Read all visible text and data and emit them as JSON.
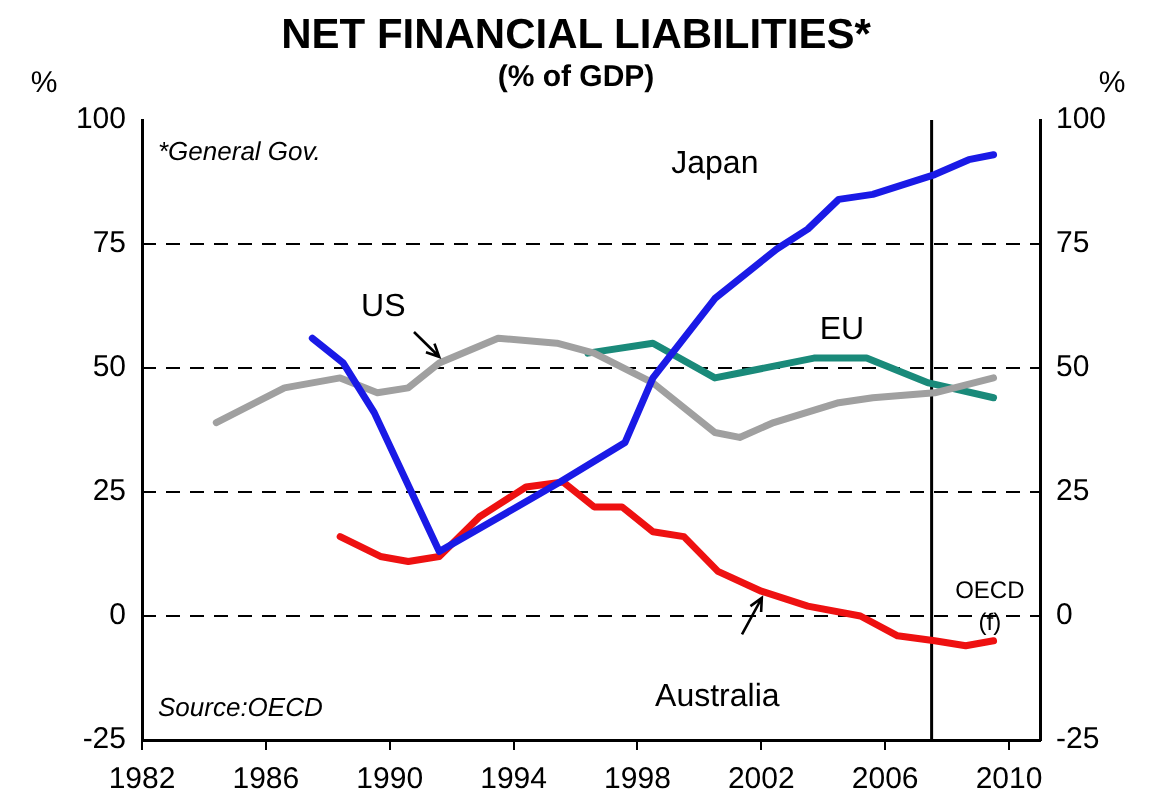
{
  "chart_data": {
    "type": "line",
    "title": "NET FINANCIAL LIABILITIES*",
    "subtitle": "(% of GDP)",
    "ylabel": "%",
    "y2label": "%",
    "annotations": [
      "*General Gov.",
      "Source:OECD"
    ],
    "xlim": [
      1982,
      2011
    ],
    "xticks": [
      1982,
      1986,
      1990,
      1994,
      1998,
      2002,
      2006,
      2010
    ],
    "ylim": [
      -25,
      100
    ],
    "yticks": [
      -25,
      0,
      25,
      50,
      75,
      100
    ],
    "y2lim": [
      -25,
      100
    ],
    "y2ticks": [
      -25,
      0,
      25,
      50,
      75,
      100
    ],
    "grid": "y",
    "legend": false,
    "marker": "none",
    "line_style": "solid",
    "ref_lines": [
      {
        "axis": "x",
        "value": 2007.5,
        "label": "OECD (f)",
        "color": "#000000"
      }
    ],
    "series": [
      {
        "name": "Japan",
        "color": "#1a1ae6",
        "x": [
          1987.5,
          1988.5,
          1989.5,
          1991.6,
          1995.5,
          1997.6,
          1998.5,
          2000.5,
          2002.5,
          2003.5,
          2004.5,
          2005.6,
          2007.6,
          2008.7,
          2009.5
        ],
        "values": [
          56,
          51,
          41,
          13,
          27,
          35,
          48,
          64,
          74,
          78,
          84,
          85,
          89,
          92,
          93
        ]
      },
      {
        "name": "US",
        "color": "#a0a0a0",
        "x": [
          1984.4,
          1986.6,
          1988.4,
          1989.6,
          1990.6,
          1991.6,
          1993.5,
          1995.4,
          1996.6,
          1998.5,
          2000.5,
          2001.3,
          2002.4,
          2004.5,
          2005.6,
          2007.6,
          2009.5
        ],
        "values": [
          39,
          46,
          48,
          45,
          46,
          51,
          56,
          55,
          53,
          47,
          37,
          36,
          39,
          43,
          44,
          45,
          48
        ]
      },
      {
        "name": "EU",
        "color": "#1a8a7a",
        "x": [
          1996.4,
          1998.5,
          2000.5,
          2001.3,
          2003.7,
          2005.4,
          2007.4,
          2009.5
        ],
        "values": [
          53,
          55,
          48,
          49,
          52,
          52,
          47,
          44
        ]
      },
      {
        "name": "Australia",
        "color": "#ee1111",
        "x": [
          1988.4,
          1989.7,
          1990.6,
          1991.6,
          1992.9,
          1994.4,
          1995.6,
          1996.6,
          1997.5,
          1998.5,
          1999.5,
          2000.6,
          2002,
          2003.5,
          2005.2,
          2006.4,
          2007.6,
          2008.6,
          2009.5
        ],
        "values": [
          16,
          12,
          11,
          12,
          20,
          26,
          27,
          22,
          22,
          17,
          16,
          9,
          5,
          2,
          0,
          -4,
          -5,
          -6,
          -5
        ]
      }
    ]
  }
}
